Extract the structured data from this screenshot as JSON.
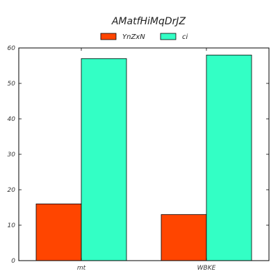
{
  "chart_data": {
    "type": "bar",
    "title": "AMatfHiMqDrJZ",
    "categories": [
      "mt",
      "WBKE"
    ],
    "series": [
      {
        "name": "YnZxN",
        "values": [
          16,
          13
        ],
        "color": "#ff4500"
      },
      {
        "name": "ci",
        "values": [
          57,
          58
        ],
        "color": "#33ffc5"
      }
    ],
    "xlabel": "",
    "ylabel": "",
    "ylim": [
      0,
      60
    ],
    "yticks": [
      0,
      10,
      20,
      30,
      40,
      50,
      60
    ],
    "grid": false,
    "legend_position": "top-center"
  }
}
